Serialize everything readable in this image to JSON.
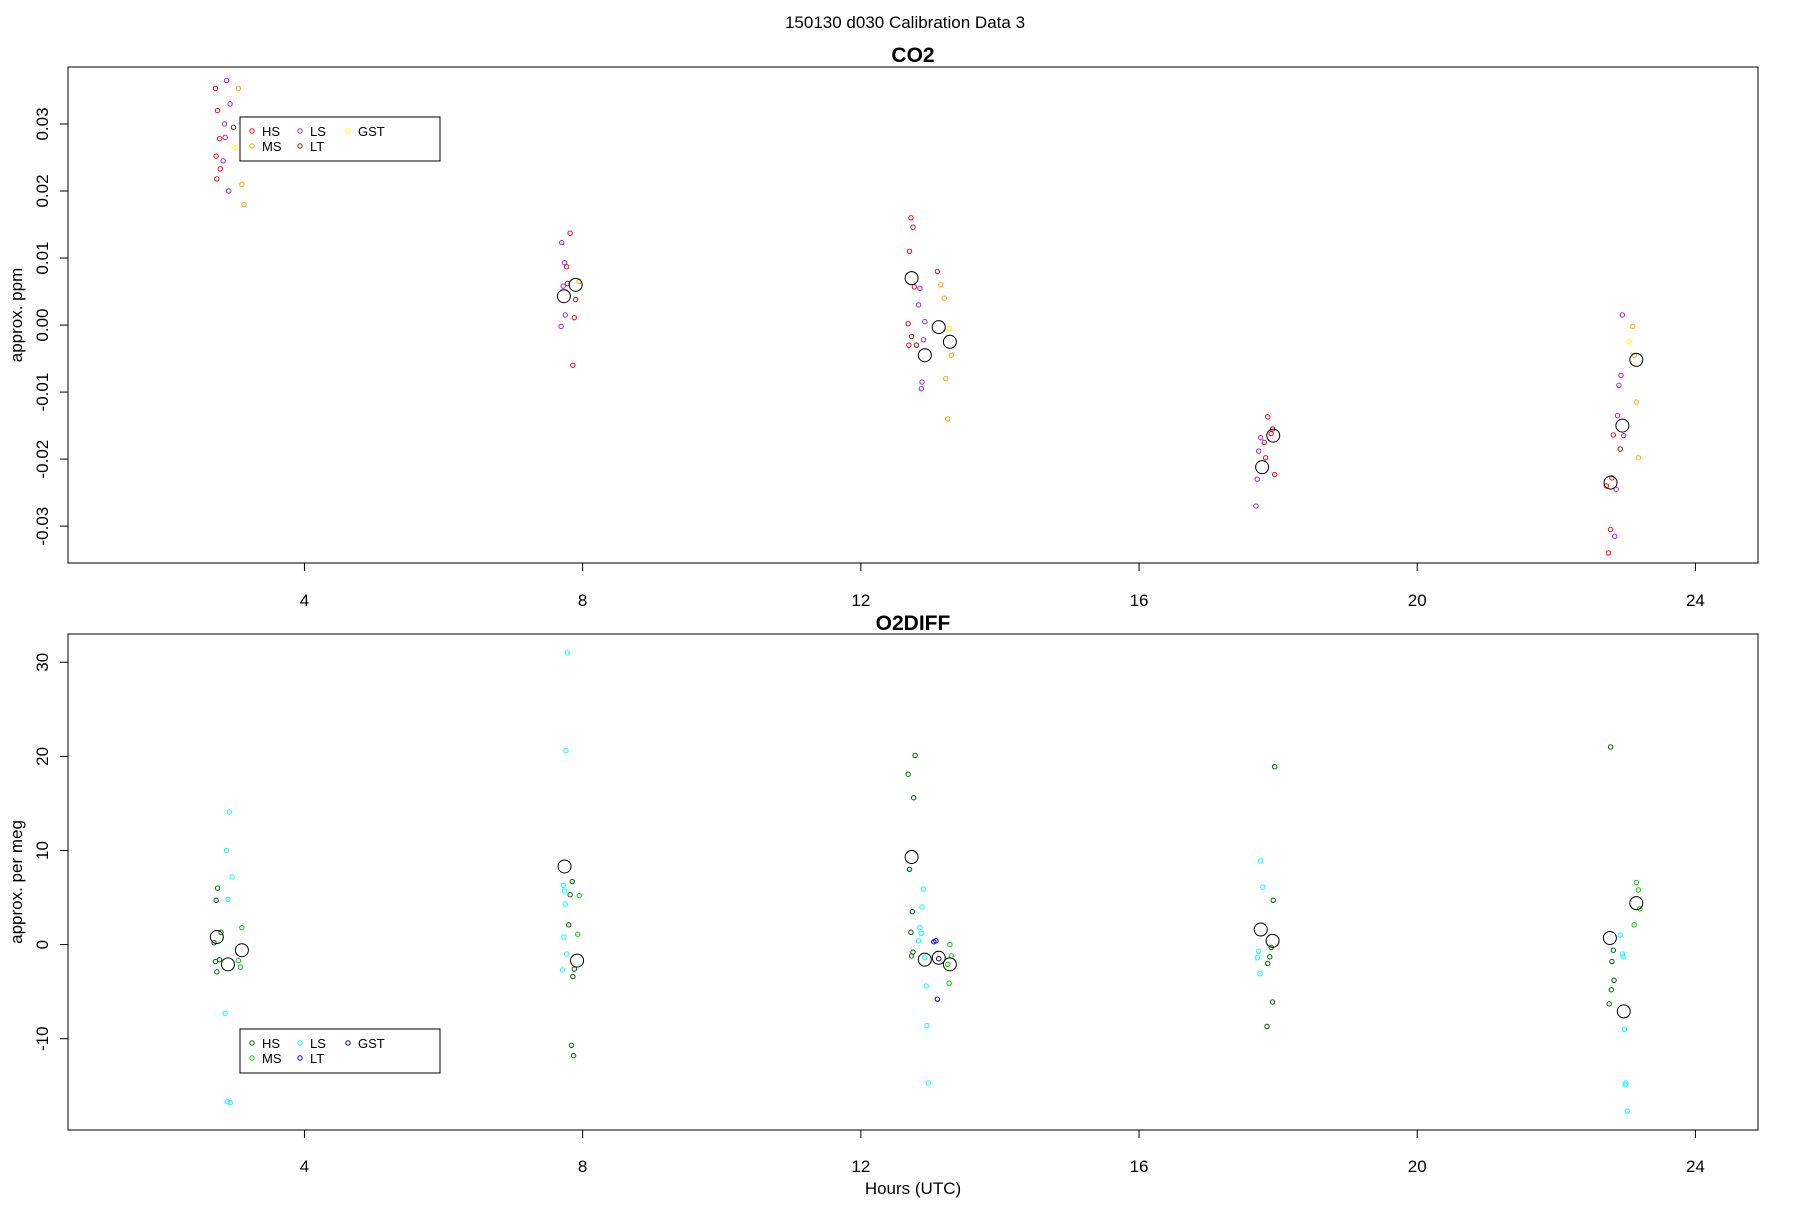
{
  "page": {
    "suptitle": "150130   d030   Calibration Data 3"
  },
  "chart_data": [
    {
      "type": "scatter",
      "title": "CO2",
      "xlabel": "",
      "ylabel": "approx. ppm",
      "xlim": [
        0.6,
        24.9
      ],
      "ylim": [
        -0.0355,
        0.0385
      ],
      "xticks": [
        4,
        8,
        12,
        16,
        20,
        24
      ],
      "xtick_labels": [
        "4",
        "8",
        "12",
        "16",
        "20",
        "24"
      ],
      "yticks": [
        -0.03,
        -0.02,
        -0.01,
        0.0,
        0.01,
        0.02,
        0.03
      ],
      "ytick_labels": [
        "-0.03",
        "-0.02",
        "-0.01",
        "0.00",
        "0.01",
        "0.02",
        "0.03"
      ],
      "grid": false,
      "legend_position": "top-left",
      "series": [
        {
          "name": "HS",
          "color": "#ff0000",
          "points": [
            [
              2.72,
              0.0353
            ],
            [
              2.75,
              0.032
            ],
            [
              2.78,
              0.0278
            ],
            [
              2.73,
              0.0252
            ],
            [
              2.74,
              0.0218
            ],
            [
              2.79,
              0.0233
            ],
            [
              7.82,
              0.0137
            ],
            [
              7.78,
              0.0062
            ],
            [
              7.88,
              0.0011
            ],
            [
              7.86,
              -0.006
            ],
            [
              7.77,
              0.0087
            ],
            [
              12.72,
              0.016
            ],
            [
              12.75,
              0.0146
            ],
            [
              12.7,
              0.011
            ],
            [
              12.68,
              0.0002
            ],
            [
              12.73,
              -0.0017
            ],
            [
              12.69,
              -0.003
            ],
            [
              12.77,
              0.0057
            ],
            [
              13.1,
              0.008
            ],
            [
              17.85,
              -0.0137
            ],
            [
              17.9,
              -0.0162
            ],
            [
              17.82,
              -0.0198
            ],
            [
              17.95,
              -0.0223
            ],
            [
              17.8,
              -0.0175
            ],
            [
              22.75,
              -0.034
            ],
            [
              22.78,
              -0.0305
            ],
            [
              22.8,
              -0.0228
            ],
            [
              22.82,
              -0.0164
            ],
            [
              22.72,
              -0.024
            ]
          ]
        },
        {
          "name": "MS",
          "color": "#ffa500",
          "points": [
            [
              3.05,
              0.0353
            ],
            [
              3.1,
              0.021
            ],
            [
              3.13,
              0.018
            ],
            [
              7.95,
              0.0065
            ],
            [
              13.15,
              0.006
            ],
            [
              13.2,
              0.004
            ],
            [
              13.22,
              -0.008
            ],
            [
              13.25,
              -0.014
            ],
            [
              13.3,
              -0.0045
            ],
            [
              23.1,
              -0.0002
            ],
            [
              23.12,
              -0.0045
            ],
            [
              23.15,
              -0.0115
            ],
            [
              23.18,
              -0.0198
            ]
          ]
        },
        {
          "name": "LS",
          "color": "#a020f0",
          "points": [
            [
              2.88,
              0.0365
            ],
            [
              2.93,
              0.033
            ],
            [
              2.85,
              0.03
            ],
            [
              2.91,
              0.02
            ],
            [
              2.83,
              0.0245
            ],
            [
              2.86,
              0.028
            ],
            [
              7.7,
              0.0123
            ],
            [
              7.74,
              0.0093
            ],
            [
              7.72,
              0.0058
            ],
            [
              7.69,
              -0.0002
            ],
            [
              7.75,
              0.0015
            ],
            [
              12.85,
              0.0055
            ],
            [
              12.92,
              0.0005
            ],
            [
              12.9,
              -0.0022
            ],
            [
              12.88,
              -0.0085
            ],
            [
              12.87,
              -0.0095
            ],
            [
              12.83,
              0.003
            ],
            [
              17.7,
              -0.023
            ],
            [
              17.72,
              -0.0188
            ],
            [
              17.68,
              -0.027
            ],
            [
              17.75,
              -0.0168
            ],
            [
              22.95,
              0.0015
            ],
            [
              22.93,
              -0.0075
            ],
            [
              22.9,
              -0.009
            ],
            [
              22.88,
              -0.0135
            ],
            [
              22.97,
              -0.0165
            ],
            [
              22.86,
              -0.0245
            ],
            [
              22.84,
              -0.0315
            ]
          ]
        },
        {
          "name": "LT",
          "color": "#8b1a1a",
          "points": [
            [
              2.98,
              0.0295
            ],
            [
              7.9,
              0.0038
            ],
            [
              12.8,
              -0.003
            ],
            [
              17.92,
              -0.0155
            ],
            [
              22.92,
              -0.0185
            ]
          ]
        },
        {
          "name": "GST",
          "color": "#ffff00",
          "points": [
            [
              3.0,
              0.0265
            ],
            [
              13.27,
              -0.0005
            ],
            [
              23.05,
              -0.0025
            ]
          ]
        }
      ],
      "averages": {
        "color": "#000000",
        "points": [
          [
            7.73,
            0.0043
          ],
          [
            7.9,
            0.006
          ],
          [
            12.73,
            0.007
          ],
          [
            12.92,
            -0.0045
          ],
          [
            13.12,
            -0.0003
          ],
          [
            13.28,
            -0.0025
          ],
          [
            17.77,
            -0.0212
          ],
          [
            17.93,
            -0.0165
          ],
          [
            22.78,
            -0.0235
          ],
          [
            22.95,
            -0.015
          ],
          [
            23.15,
            -0.0052
          ]
        ]
      }
    },
    {
      "type": "scatter",
      "title": "O2DIFF",
      "xlabel": "Hours (UTC)",
      "ylabel": "approx. per meg",
      "xlim": [
        0.6,
        24.9
      ],
      "ylim": [
        -19.7,
        33.0
      ],
      "xticks": [
        4,
        8,
        12,
        16,
        20,
        24
      ],
      "xtick_labels": [
        "4",
        "8",
        "12",
        "16",
        "20",
        "24"
      ],
      "yticks": [
        -10,
        0,
        10,
        20,
        30
      ],
      "ytick_labels": [
        "-10",
        "0",
        "10",
        "20",
        "30"
      ],
      "grid": false,
      "legend_position": "bottom-left",
      "series": [
        {
          "name": "HS",
          "color": "#006400",
          "points": [
            [
              2.75,
              6.0
            ],
            [
              2.73,
              4.7
            ],
            [
              2.8,
              1.3
            ],
            [
              2.7,
              0.2
            ],
            [
              2.72,
              -1.8
            ],
            [
              2.78,
              -1.6
            ],
            [
              2.74,
              -2.9
            ],
            [
              7.85,
              6.7
            ],
            [
              7.82,
              5.3
            ],
            [
              7.8,
              2.1
            ],
            [
              7.88,
              -2.6
            ],
            [
              7.86,
              -3.4
            ],
            [
              7.84,
              -10.7
            ],
            [
              7.87,
              -11.8
            ],
            [
              12.78,
              20.1
            ],
            [
              12.68,
              18.1
            ],
            [
              12.76,
              15.6
            ],
            [
              12.7,
              8.0
            ],
            [
              12.74,
              3.5
            ],
            [
              12.72,
              1.3
            ],
            [
              12.75,
              -0.8
            ],
            [
              12.73,
              -1.2
            ],
            [
              17.95,
              18.9
            ],
            [
              17.93,
              4.7
            ],
            [
              17.9,
              -0.3
            ],
            [
              17.88,
              -1.3
            ],
            [
              17.85,
              -2.0
            ],
            [
              17.92,
              -6.1
            ],
            [
              17.84,
              -8.7
            ],
            [
              22.78,
              21.0
            ],
            [
              22.82,
              -0.6
            ],
            [
              22.8,
              -1.8
            ],
            [
              22.83,
              -3.8
            ],
            [
              22.79,
              -4.8
            ],
            [
              22.76,
              -6.3
            ]
          ]
        },
        {
          "name": "MS",
          "color": "#00cd00",
          "points": [
            [
              3.1,
              1.8
            ],
            [
              3.05,
              -1.7
            ],
            [
              3.08,
              -2.4
            ],
            [
              7.95,
              5.2
            ],
            [
              7.93,
              1.1
            ],
            [
              13.28,
              0.0
            ],
            [
              13.3,
              -1.2
            ],
            [
              13.25,
              -2.1
            ],
            [
              13.27,
              -4.1
            ],
            [
              23.15,
              6.6
            ],
            [
              23.18,
              5.8
            ],
            [
              23.2,
              3.8
            ],
            [
              23.12,
              2.1
            ]
          ]
        },
        {
          "name": "LS",
          "color": "#00ffff",
          "points": [
            [
              2.92,
              14.1
            ],
            [
              2.88,
              10.0
            ],
            [
              2.96,
              7.2
            ],
            [
              2.9,
              4.8
            ],
            [
              2.86,
              -7.3
            ],
            [
              2.89,
              -16.7
            ],
            [
              2.93,
              -16.8
            ],
            [
              7.78,
              31.0
            ],
            [
              7.76,
              20.6
            ],
            [
              7.72,
              6.3
            ],
            [
              7.74,
              5.7
            ],
            [
              7.75,
              4.3
            ],
            [
              7.73,
              0.8
            ],
            [
              7.77,
              -1.0
            ],
            [
              7.71,
              -2.7
            ],
            [
              12.9,
              5.9
            ],
            [
              12.88,
              4.0
            ],
            [
              12.85,
              1.8
            ],
            [
              12.87,
              1.2
            ],
            [
              12.83,
              0.4
            ],
            [
              12.92,
              -1.4
            ],
            [
              12.94,
              -4.4
            ],
            [
              12.95,
              -8.6
            ],
            [
              12.97,
              -14.7
            ],
            [
              17.75,
              8.9
            ],
            [
              17.78,
              6.1
            ],
            [
              17.72,
              -0.7
            ],
            [
              17.7,
              -1.4
            ],
            [
              17.74,
              -3.1
            ],
            [
              22.92,
              1.0
            ],
            [
              22.95,
              -1.0
            ],
            [
              22.96,
              -1.3
            ],
            [
              22.98,
              -9.0
            ],
            [
              23.0,
              -14.7
            ],
            [
              22.99,
              -14.9
            ],
            [
              23.02,
              -17.7
            ]
          ]
        },
        {
          "name": "LT",
          "color": "#0000ff",
          "points": [
            [
              13.05,
              0.3
            ],
            [
              13.08,
              0.4
            ],
            [
              13.1,
              -5.8
            ]
          ]
        },
        {
          "name": "GST",
          "color": "#00008b",
          "points": [
            [
              13.12,
              -1.5
            ]
          ]
        }
      ],
      "averages": {
        "color": "#000000",
        "points": [
          [
            2.74,
            0.8
          ],
          [
            2.9,
            -2.1
          ],
          [
            3.1,
            -0.6
          ],
          [
            7.74,
            8.3
          ],
          [
            7.92,
            -1.7
          ],
          [
            12.73,
            9.3
          ],
          [
            12.92,
            -1.6
          ],
          [
            13.12,
            -1.4
          ],
          [
            13.28,
            -2.1
          ],
          [
            17.75,
            1.6
          ],
          [
            17.92,
            0.4
          ],
          [
            22.77,
            0.7
          ],
          [
            22.97,
            -7.1
          ],
          [
            23.15,
            4.4
          ]
        ]
      }
    }
  ]
}
